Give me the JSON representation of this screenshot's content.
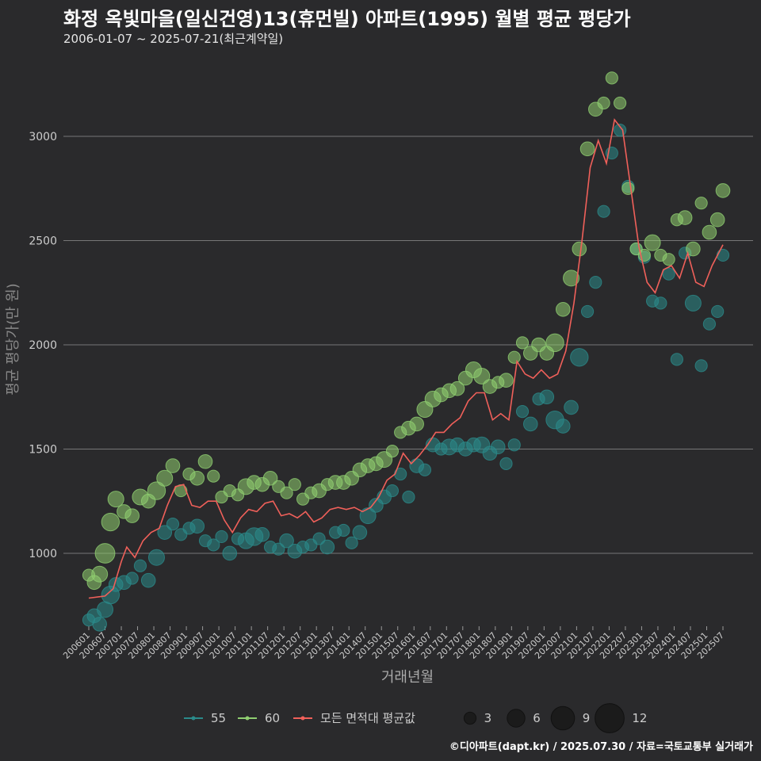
{
  "title": "화정 옥빛마을(일신건영)13(휴먼빌) 아파트(1995) 월별 평균 평당가",
  "subtitle": "2006-01-07 ~ 2025-07-21(최근계약일)",
  "caption": "©디아파트(dapt.kr) / 2025.07.30 / 자료=국토교통부 실거래가",
  "colors": {
    "s55": "#2a8a8a",
    "s60": "#8fce70",
    "avg": "#f0605a",
    "grid": "#777777",
    "axis_text": "#cccccc"
  },
  "chart_data": {
    "type": "line",
    "xlabel": "거래년월",
    "ylabel": "평균 평당가(만 원)",
    "xlim": [
      "200601",
      "202507"
    ],
    "ylim": [
      650,
      3350
    ],
    "yticks": [
      1000,
      1500,
      2000,
      2500,
      3000
    ],
    "xticks": [
      "200601",
      "200607",
      "200701",
      "200707",
      "200801",
      "200807",
      "200901",
      "200907",
      "201001",
      "201007",
      "201101",
      "201107",
      "201201",
      "201207",
      "201301",
      "201307",
      "201401",
      "201407",
      "201501",
      "201507",
      "201601",
      "201607",
      "201701",
      "201707",
      "201801",
      "201807",
      "201901",
      "201907",
      "202001",
      "202007",
      "202101",
      "202107",
      "202201",
      "202207",
      "202301",
      "202307",
      "202401",
      "202407",
      "202501",
      "202507"
    ],
    "grid": "horizontal",
    "legend": {
      "position": "bottom",
      "series": [
        {
          "name": "55"
        },
        {
          "name": "60"
        },
        {
          "name": "모든 면적대 평균값"
        }
      ],
      "size_labels": [
        "3",
        "6",
        "9",
        "12"
      ]
    },
    "average_line": {
      "name": "모든 면적대 평균값",
      "points": [
        [
          "200601",
          785
        ],
        [
          "200607",
          795
        ],
        [
          "200610",
          830
        ],
        [
          "200701",
          960
        ],
        [
          "200703",
          1030
        ],
        [
          "200706",
          980
        ],
        [
          "200709",
          1060
        ],
        [
          "200712",
          1100
        ],
        [
          "200803",
          1120
        ],
        [
          "200806",
          1230
        ],
        [
          "200809",
          1320
        ],
        [
          "200812",
          1330
        ],
        [
          "200903",
          1230
        ],
        [
          "200906",
          1220
        ],
        [
          "200909",
          1250
        ],
        [
          "200912",
          1250
        ],
        [
          "201003",
          1160
        ],
        [
          "201006",
          1100
        ],
        [
          "201009",
          1170
        ],
        [
          "201012",
          1210
        ],
        [
          "201103",
          1200
        ],
        [
          "201106",
          1240
        ],
        [
          "201109",
          1250
        ],
        [
          "201112",
          1180
        ],
        [
          "201203",
          1190
        ],
        [
          "201206",
          1170
        ],
        [
          "201209",
          1200
        ],
        [
          "201212",
          1150
        ],
        [
          "201303",
          1170
        ],
        [
          "201306",
          1210
        ],
        [
          "201309",
          1220
        ],
        [
          "201312",
          1210
        ],
        [
          "201403",
          1220
        ],
        [
          "201406",
          1200
        ],
        [
          "201409",
          1220
        ],
        [
          "201412",
          1270
        ],
        [
          "201503",
          1350
        ],
        [
          "201506",
          1380
        ],
        [
          "201509",
          1480
        ],
        [
          "201512",
          1430
        ],
        [
          "201603",
          1470
        ],
        [
          "201606",
          1520
        ],
        [
          "201609",
          1580
        ],
        [
          "201612",
          1580
        ],
        [
          "201703",
          1620
        ],
        [
          "201706",
          1650
        ],
        [
          "201709",
          1730
        ],
        [
          "201712",
          1770
        ],
        [
          "201803",
          1770
        ],
        [
          "201806",
          1640
        ],
        [
          "201809",
          1670
        ],
        [
          "201812",
          1640
        ],
        [
          "201903",
          1920
        ],
        [
          "201906",
          1860
        ],
        [
          "201909",
          1840
        ],
        [
          "201912",
          1880
        ],
        [
          "202003",
          1840
        ],
        [
          "202006",
          1860
        ],
        [
          "202009",
          1970
        ],
        [
          "202012",
          2200
        ],
        [
          "202103",
          2500
        ],
        [
          "202106",
          2850
        ],
        [
          "202109",
          2980
        ],
        [
          "202112",
          2870
        ],
        [
          "202203",
          3080
        ],
        [
          "202206",
          3030
        ],
        [
          "202209",
          2750
        ],
        [
          "202212",
          2470
        ],
        [
          "202303",
          2300
        ],
        [
          "202306",
          2250
        ],
        [
          "202309",
          2360
        ],
        [
          "202312",
          2380
        ],
        [
          "202403",
          2320
        ],
        [
          "202406",
          2440
        ],
        [
          "202409",
          2300
        ],
        [
          "202412",
          2280
        ],
        [
          "202503",
          2380
        ],
        [
          "202507",
          2480
        ]
      ]
    },
    "series": [
      {
        "name": "55",
        "points": [
          [
            "200601",
            680,
            3
          ],
          [
            "200603",
            700,
            4
          ],
          [
            "200605",
            660,
            4
          ],
          [
            "200607",
            730,
            5
          ],
          [
            "200609",
            800,
            6
          ],
          [
            "200611",
            850,
            4
          ],
          [
            "200702",
            860,
            4
          ],
          [
            "200705",
            880,
            3
          ],
          [
            "200708",
            940,
            3
          ],
          [
            "200711",
            870,
            4
          ],
          [
            "200802",
            980,
            5
          ],
          [
            "200805",
            1100,
            4
          ],
          [
            "200808",
            1140,
            3
          ],
          [
            "200811",
            1090,
            3
          ],
          [
            "200902",
            1120,
            3
          ],
          [
            "200905",
            1130,
            4
          ],
          [
            "200908",
            1060,
            3
          ],
          [
            "200911",
            1040,
            3
          ],
          [
            "201002",
            1080,
            3
          ],
          [
            "201005",
            1000,
            4
          ],
          [
            "201008",
            1070,
            3
          ],
          [
            "201011",
            1060,
            5
          ],
          [
            "201102",
            1080,
            6
          ],
          [
            "201105",
            1090,
            4
          ],
          [
            "201108",
            1030,
            3
          ],
          [
            "201111",
            1020,
            3
          ],
          [
            "201202",
            1060,
            4
          ],
          [
            "201205",
            1010,
            4
          ],
          [
            "201208",
            1030,
            3
          ],
          [
            "201211",
            1040,
            3
          ],
          [
            "201302",
            1070,
            3
          ],
          [
            "201305",
            1030,
            4
          ],
          [
            "201308",
            1100,
            3
          ],
          [
            "201311",
            1110,
            3
          ],
          [
            "201402",
            1050,
            3
          ],
          [
            "201405",
            1100,
            4
          ],
          [
            "201408",
            1180,
            5
          ],
          [
            "201411",
            1230,
            4
          ],
          [
            "201502",
            1270,
            4
          ],
          [
            "201505",
            1300,
            3
          ],
          [
            "201508",
            1380,
            3
          ],
          [
            "201511",
            1270,
            3
          ],
          [
            "201602",
            1420,
            4
          ],
          [
            "201605",
            1400,
            3
          ],
          [
            "201608",
            1520,
            4
          ],
          [
            "201611",
            1500,
            3
          ],
          [
            "201702",
            1510,
            5
          ],
          [
            "201705",
            1520,
            4
          ],
          [
            "201708",
            1500,
            4
          ],
          [
            "201711",
            1520,
            4
          ],
          [
            "201802",
            1520,
            5
          ],
          [
            "201805",
            1480,
            4
          ],
          [
            "201808",
            1510,
            4
          ],
          [
            "201811",
            1430,
            3
          ],
          [
            "201902",
            1520,
            3
          ],
          [
            "201905",
            1680,
            3
          ],
          [
            "201908",
            1620,
            4
          ],
          [
            "201911",
            1740,
            3
          ],
          [
            "202002",
            1750,
            4
          ],
          [
            "202005",
            1640,
            6
          ],
          [
            "202008",
            1610,
            4
          ],
          [
            "202011",
            1700,
            4
          ],
          [
            "202102",
            1940,
            6
          ],
          [
            "202105",
            2160,
            3
          ],
          [
            "202108",
            2300,
            3
          ],
          [
            "202111",
            2640,
            3
          ],
          [
            "202202",
            2920,
            3
          ],
          [
            "202205",
            3030,
            3
          ],
          [
            "202208",
            2760,
            3
          ],
          [
            "202211",
            2460,
            3
          ],
          [
            "202302",
            2420,
            3
          ],
          [
            "202305",
            2210,
            3
          ],
          [
            "202308",
            2200,
            3
          ],
          [
            "202311",
            2340,
            3
          ],
          [
            "202402",
            1930,
            3
          ],
          [
            "202405",
            2440,
            3
          ],
          [
            "202408",
            2200,
            5
          ],
          [
            "202411",
            1900,
            3
          ],
          [
            "202502",
            2100,
            3
          ],
          [
            "202505",
            2160,
            3
          ],
          [
            "202507",
            2430,
            3
          ]
        ]
      },
      {
        "name": "60",
        "points": [
          [
            "200601",
            895,
            3
          ],
          [
            "200603",
            860,
            4
          ],
          [
            "200605",
            900,
            5
          ],
          [
            "200607",
            1000,
            7
          ],
          [
            "200609",
            1150,
            6
          ],
          [
            "200611",
            1260,
            5
          ],
          [
            "200702",
            1200,
            4
          ],
          [
            "200705",
            1180,
            4
          ],
          [
            "200708",
            1270,
            5
          ],
          [
            "200711",
            1250,
            4
          ],
          [
            "200802",
            1300,
            6
          ],
          [
            "200805",
            1360,
            5
          ],
          [
            "200808",
            1420,
            4
          ],
          [
            "200811",
            1300,
            3
          ],
          [
            "200902",
            1380,
            3
          ],
          [
            "200905",
            1360,
            4
          ],
          [
            "200908",
            1440,
            4
          ],
          [
            "200911",
            1370,
            3
          ],
          [
            "201002",
            1270,
            3
          ],
          [
            "201005",
            1300,
            3
          ],
          [
            "201008",
            1280,
            3
          ],
          [
            "201011",
            1320,
            5
          ],
          [
            "201102",
            1340,
            4
          ],
          [
            "201105",
            1330,
            4
          ],
          [
            "201108",
            1360,
            4
          ],
          [
            "201111",
            1320,
            3
          ],
          [
            "201202",
            1290,
            3
          ],
          [
            "201205",
            1330,
            3
          ],
          [
            "201208",
            1260,
            3
          ],
          [
            "201211",
            1290,
            3
          ],
          [
            "201302",
            1300,
            4
          ],
          [
            "201305",
            1330,
            3
          ],
          [
            "201308",
            1340,
            4
          ],
          [
            "201311",
            1340,
            4
          ],
          [
            "201402",
            1360,
            4
          ],
          [
            "201405",
            1400,
            4
          ],
          [
            "201408",
            1420,
            4
          ],
          [
            "201411",
            1430,
            4
          ],
          [
            "201502",
            1450,
            5
          ],
          [
            "201505",
            1490,
            3
          ],
          [
            "201508",
            1580,
            3
          ],
          [
            "201511",
            1600,
            4
          ],
          [
            "201602",
            1620,
            4
          ],
          [
            "201605",
            1690,
            5
          ],
          [
            "201608",
            1740,
            5
          ],
          [
            "201611",
            1760,
            4
          ],
          [
            "201702",
            1780,
            4
          ],
          [
            "201705",
            1790,
            4
          ],
          [
            "201708",
            1840,
            4
          ],
          [
            "201711",
            1880,
            5
          ],
          [
            "201802",
            1850,
            5
          ],
          [
            "201805",
            1800,
            4
          ],
          [
            "201808",
            1820,
            3
          ],
          [
            "201811",
            1830,
            4
          ],
          [
            "201902",
            1940,
            3
          ],
          [
            "201905",
            2010,
            3
          ],
          [
            "201908",
            1960,
            4
          ],
          [
            "201911",
            2000,
            4
          ],
          [
            "202002",
            1960,
            4
          ],
          [
            "202005",
            2010,
            6
          ],
          [
            "202008",
            2170,
            4
          ],
          [
            "202011",
            2320,
            5
          ],
          [
            "202102",
            2460,
            4
          ],
          [
            "202105",
            2940,
            4
          ],
          [
            "202108",
            3130,
            4
          ],
          [
            "202111",
            3160,
            3
          ],
          [
            "202202",
            3280,
            3
          ],
          [
            "202205",
            3160,
            3
          ],
          [
            "202208",
            2750,
            3
          ],
          [
            "202211",
            2460,
            3
          ],
          [
            "202302",
            2430,
            3
          ],
          [
            "202305",
            2490,
            5
          ],
          [
            "202308",
            2430,
            3
          ],
          [
            "202311",
            2410,
            3
          ],
          [
            "202402",
            2600,
            3
          ],
          [
            "202405",
            2610,
            4
          ],
          [
            "202408",
            2460,
            4
          ],
          [
            "202411",
            2680,
            3
          ],
          [
            "202502",
            2540,
            4
          ],
          [
            "202505",
            2600,
            4
          ],
          [
            "202507",
            2740,
            4
          ]
        ]
      }
    ]
  }
}
